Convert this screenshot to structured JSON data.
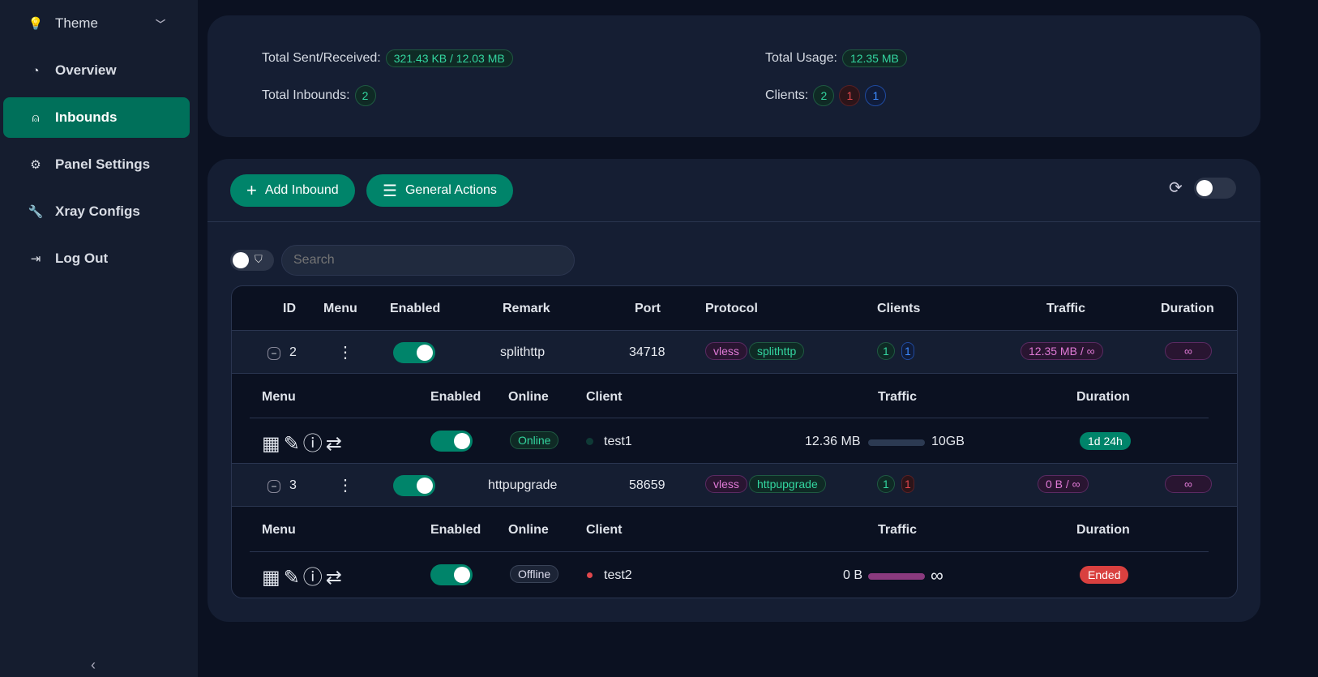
{
  "sidebar": {
    "items": [
      {
        "label": "Theme",
        "icon": "bulb-icon"
      },
      {
        "label": "Overview",
        "icon": "dashboard-icon"
      },
      {
        "label": "Inbounds",
        "icon": "user-icon"
      },
      {
        "label": "Panel Settings",
        "icon": "gear-icon"
      },
      {
        "label": "Xray Configs",
        "icon": "wrench-icon"
      },
      {
        "label": "Log Out",
        "icon": "logout-icon"
      }
    ],
    "active": "Inbounds"
  },
  "stats": {
    "sent_label": "Total Sent/Received:",
    "sent_value": "321.43 KB / 12.03 MB",
    "usage_label": "Total Usage:",
    "usage_value": "12.35 MB",
    "inbounds_label": "Total Inbounds:",
    "inbounds_value": "2",
    "clients_label": "Clients:",
    "clients": [
      "2",
      "1",
      "1"
    ]
  },
  "toolbar": {
    "add_label": "Add Inbound",
    "actions_label": "General Actions"
  },
  "search": {
    "placeholder": "Search"
  },
  "table": {
    "headers": [
      "ID",
      "Menu",
      "Enabled",
      "Remark",
      "Port",
      "Protocol",
      "Clients",
      "Traffic",
      "Duration"
    ],
    "sub_headers": [
      "Menu",
      "Enabled",
      "Online",
      "Client",
      "Traffic",
      "Duration"
    ],
    "rows": [
      {
        "id": "2",
        "enabled": true,
        "remark": "splithttp",
        "port": "34718",
        "protocol": "vless",
        "transport": "splithttp",
        "clients_a": "1",
        "clients_b": "1",
        "traffic": "12.35 MB / ∞",
        "duration": "∞",
        "client": {
          "enabled": true,
          "online": "Online",
          "name": "test1",
          "used": "12.36 MB",
          "total": "10GB",
          "duration": "1d 24h"
        }
      },
      {
        "id": "3",
        "enabled": true,
        "remark": "httpupgrade",
        "port": "58659",
        "protocol": "vless",
        "transport": "httpupgrade",
        "clients_a": "1",
        "clients_b": "1",
        "traffic": "0 B / ∞",
        "duration": "∞",
        "client": {
          "enabled": true,
          "online": "Offline",
          "name": "test2",
          "used": "0 B",
          "total": "∞",
          "duration": "Ended"
        }
      }
    ]
  },
  "colors": {
    "accent": "#00846a",
    "green": "#33d6a0",
    "red": "#e0474c",
    "blue": "#3d8bff",
    "magenta": "#e07ad6"
  }
}
